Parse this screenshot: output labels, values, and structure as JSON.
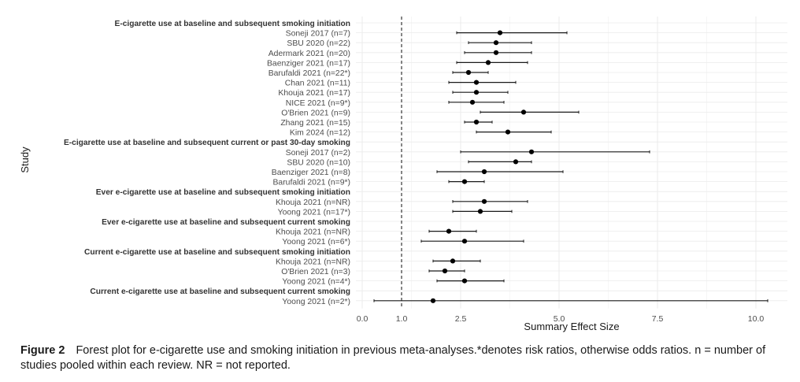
{
  "chart_data": {
    "type": "forest",
    "xlabel": "Summary Effect Size",
    "ylabel": "Study",
    "xlim": [
      0,
      10.8
    ],
    "x_ticks": [
      0.0,
      1.0,
      2.5,
      5.0,
      7.5,
      10.0
    ],
    "x_tick_labels": [
      "0.0",
      "1.0",
      "2.5",
      "5.0",
      "7.5",
      "10.0"
    ],
    "reference_line": 1.0,
    "grid": true,
    "rows": [
      {
        "kind": "header",
        "label": "E-cigarette use at baseline and subsequent smoking initiation"
      },
      {
        "kind": "study",
        "label": "Soneji 2017 (n=7)",
        "estimate": 3.5,
        "lower": 2.4,
        "upper": 5.2
      },
      {
        "kind": "study",
        "label": "SBU 2020 (n=22)",
        "estimate": 3.4,
        "lower": 2.7,
        "upper": 4.3
      },
      {
        "kind": "study",
        "label": "Adermark 2021 (n=20)",
        "estimate": 3.4,
        "lower": 2.6,
        "upper": 4.3
      },
      {
        "kind": "study",
        "label": "Baenziger 2021 (n=17)",
        "estimate": 3.2,
        "lower": 2.4,
        "upper": 4.2
      },
      {
        "kind": "study",
        "label": "Barufaldi 2021 (n=22*)",
        "estimate": 2.7,
        "lower": 2.3,
        "upper": 3.2
      },
      {
        "kind": "study",
        "label": "Chan 2021 (n=11)",
        "estimate": 2.9,
        "lower": 2.2,
        "upper": 3.9
      },
      {
        "kind": "study",
        "label": "Khouja 2021 (n=17)",
        "estimate": 2.9,
        "lower": 2.3,
        "upper": 3.7
      },
      {
        "kind": "study",
        "label": "NICE 2021 (n=9*)",
        "estimate": 2.8,
        "lower": 2.2,
        "upper": 3.6
      },
      {
        "kind": "study",
        "label": "O'Brien 2021 (n=9)",
        "estimate": 4.1,
        "lower": 3.0,
        "upper": 5.5
      },
      {
        "kind": "study",
        "label": "Zhang 2021 (n=15)",
        "estimate": 2.9,
        "lower": 2.6,
        "upper": 3.3
      },
      {
        "kind": "study",
        "label": "Kim 2024 (n=12)",
        "estimate": 3.7,
        "lower": 2.9,
        "upper": 4.8
      },
      {
        "kind": "header",
        "label": "E-cigarette use at baseline and subsequent current or past 30-day smoking"
      },
      {
        "kind": "study",
        "label": "Soneji 2017 (n=2)",
        "estimate": 4.3,
        "lower": 2.5,
        "upper": 7.3
      },
      {
        "kind": "study",
        "label": "SBU 2020 (n=10)",
        "estimate": 3.9,
        "lower": 2.7,
        "upper": 4.3
      },
      {
        "kind": "study",
        "label": "Baenziger 2021 (n=8)",
        "estimate": 3.1,
        "lower": 1.9,
        "upper": 5.1
      },
      {
        "kind": "study",
        "label": "Barufaldi 2021 (n=9*)",
        "estimate": 2.6,
        "lower": 2.2,
        "upper": 3.1
      },
      {
        "kind": "header",
        "label": "Ever e-cigarette use at baseline and subsequent smoking initiation"
      },
      {
        "kind": "study",
        "label": "Khouja 2021 (n=NR)",
        "estimate": 3.1,
        "lower": 2.3,
        "upper": 4.2
      },
      {
        "kind": "study",
        "label": "Yoong 2021 (n=17*)",
        "estimate": 3.0,
        "lower": 2.3,
        "upper": 3.8
      },
      {
        "kind": "header",
        "label": "Ever e-cigarette use at baseline and subsequent current smoking"
      },
      {
        "kind": "study",
        "label": "Khouja 2021 (n=NR)",
        "estimate": 2.2,
        "lower": 1.7,
        "upper": 2.9
      },
      {
        "kind": "study",
        "label": "Yoong 2021 (n=6*)",
        "estimate": 2.6,
        "lower": 1.5,
        "upper": 4.1
      },
      {
        "kind": "header",
        "label": "Current e-cigarette use at baseline and subsequent smoking initiation"
      },
      {
        "kind": "study",
        "label": "Khouja 2021 (n=NR)",
        "estimate": 2.3,
        "lower": 1.8,
        "upper": 3.0
      },
      {
        "kind": "study",
        "label": "O'Brien 2021 (n=3)",
        "estimate": 2.1,
        "lower": 1.7,
        "upper": 2.6
      },
      {
        "kind": "study",
        "label": "Yoong 2021 (n=4*)",
        "estimate": 2.6,
        "lower": 1.9,
        "upper": 3.6
      },
      {
        "kind": "header",
        "label": "Current e-cigarette use at baseline and subsequent current smoking"
      },
      {
        "kind": "study",
        "label": "Yoong 2021 (n=2*)",
        "estimate": 1.8,
        "lower": 0.3,
        "upper": 10.3
      }
    ]
  },
  "caption": {
    "label": "Figure 2",
    "text": "Forest plot for e-cigarette use and smoking initiation in previous meta-analyses.*denotes risk ratios, otherwise odds ratios. n = number of studies pooled within each review. NR = not reported."
  },
  "colors": {
    "grid": "#ebebeb",
    "line": "#1a1a1a",
    "point": "#000000",
    "label": "#4d4d4d",
    "header": "#333333"
  }
}
